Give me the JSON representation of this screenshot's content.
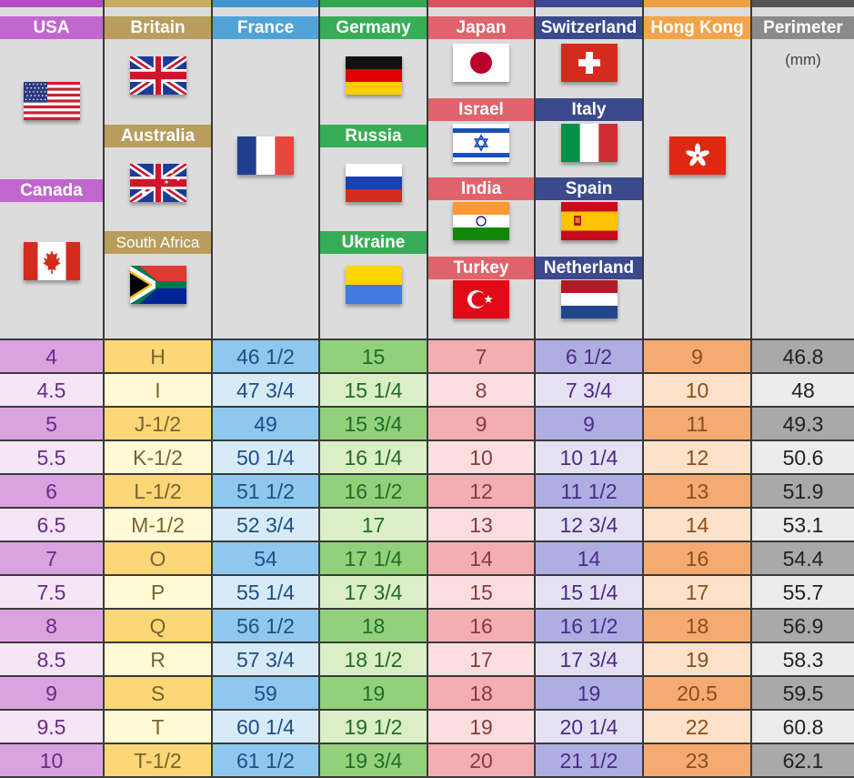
{
  "columns": [
    {
      "key": "usa",
      "header": "USA",
      "badge_color": "#c266cf",
      "top_color": "#b24dc4",
      "dark": "#d9a3e0",
      "light": "#f4e6f4",
      "text": "#6a2a88",
      "groups": [
        {
          "label": "",
          "flag": "us-flag-icon"
        },
        {
          "label": "Canada",
          "flag": "ca-flag-icon"
        }
      ]
    },
    {
      "key": "britain",
      "header": "Britain",
      "badge_color": "#b89d5c",
      "top_color": "#c8ad62",
      "dark": "#fcd777",
      "light": "#fefbd6",
      "text": "#7a6430",
      "groups": [
        {
          "label": "",
          "flag": "gb-flag-icon"
        },
        {
          "label": "Australia",
          "flag": "au-flag-icon"
        },
        {
          "label": "South Africa",
          "flag": "za-flag-icon"
        }
      ]
    },
    {
      "key": "france",
      "header": "France",
      "badge_color": "#4fa3d6",
      "top_color": "#3f96d2",
      "dark": "#8fc8ee",
      "light": "#d6ebf7",
      "text": "#1f4f86",
      "groups": [
        {
          "label": "",
          "flag": "fr-flag-icon"
        }
      ]
    },
    {
      "key": "germany",
      "header": "Germany",
      "badge_color": "#38ad57",
      "top_color": "#2fa64f",
      "dark": "#92d17a",
      "light": "#daefc6",
      "text": "#226b2a",
      "groups": [
        {
          "label": "",
          "flag": "de-flag-icon"
        },
        {
          "label": "Russia",
          "flag": "ru-flag-icon"
        },
        {
          "label": "Ukraine",
          "flag": "ua-flag-icon"
        }
      ]
    },
    {
      "key": "japan",
      "header": "Japan",
      "badge_color": "#e0636b",
      "top_color": "#d9505a",
      "dark": "#f3aeb2",
      "light": "#fbdfe0",
      "text": "#8a3a3e",
      "groups": [
        {
          "label": "",
          "flag": "jp-flag-icon"
        },
        {
          "label": "Israel",
          "flag": "il-flag-icon"
        },
        {
          "label": "India",
          "flag": "in-flag-icon"
        },
        {
          "label": "Turkey",
          "flag": "tr-flag-icon"
        }
      ]
    },
    {
      "key": "switzerland",
      "header": "Switzerland",
      "badge_color": "#3b4a8c",
      "top_color": "#3a4791",
      "dark": "#aeaee3",
      "light": "#e4e1f3",
      "text": "#4d2a88",
      "groups": [
        {
          "label": "",
          "flag": "ch-flag-icon"
        },
        {
          "label": "Italy",
          "flag": "it-flag-icon"
        },
        {
          "label": "Spain",
          "flag": "es-flag-icon"
        },
        {
          "label": "Netherland",
          "flag": "nl-flag-icon"
        }
      ]
    },
    {
      "key": "hongkong",
      "header": "Hong Kong",
      "badge_color": "#f3a449",
      "top_color": "#f0a040",
      "dark": "#f5aa72",
      "light": "#fde2c9",
      "text": "#8a4e1c",
      "groups": [
        {
          "label": "",
          "flag": "hk-flag-icon"
        }
      ]
    },
    {
      "key": "perimeter",
      "header": "Perimeter",
      "unit": "(mm)",
      "badge_color": "#8a8a8a",
      "top_color": "#555555",
      "dark": "#a9a9a9",
      "light": "#ececec",
      "text": "#222222",
      "groups": []
    }
  ],
  "rows": [
    [
      "4",
      "H",
      "46 1/2",
      "15",
      "7",
      "6 1/2",
      "9",
      "46.8"
    ],
    [
      "4.5",
      "I",
      "47 3/4",
      "15 1/4",
      "8",
      "7 3/4",
      "10",
      "48"
    ],
    [
      "5",
      "J-1/2",
      "49",
      "15 3/4",
      "9",
      "9",
      "11",
      "49.3"
    ],
    [
      "5.5",
      "K-1/2",
      "50 1/4",
      "16 1/4",
      "10",
      "10 1/4",
      "12",
      "50.6"
    ],
    [
      "6",
      "L-1/2",
      "51 1/2",
      "16 1/2",
      "12",
      "11 1/2",
      "13",
      "51.9"
    ],
    [
      "6.5",
      "M-1/2",
      "52 3/4",
      "17",
      "13",
      "12 3/4",
      "14",
      "53.1"
    ],
    [
      "7",
      "O",
      "54",
      "17 1/4",
      "14",
      "14",
      "16",
      "54.4"
    ],
    [
      "7.5",
      "P",
      "55 1/4",
      "17 3/4",
      "15",
      "15 1/4",
      "17",
      "55.7"
    ],
    [
      "8",
      "Q",
      "56 1/2",
      "18",
      "16",
      "16 1/2",
      "18",
      "56.9"
    ],
    [
      "8.5",
      "R",
      "57 3/4",
      "18 1/2",
      "17",
      "17 3/4",
      "19",
      "58.3"
    ],
    [
      "9",
      "S",
      "59",
      "19",
      "18",
      "19",
      "20.5",
      "59.5"
    ],
    [
      "9.5",
      "T",
      "60 1/4",
      "19 1/2",
      "19",
      "20 1/4",
      "22",
      "60.8"
    ],
    [
      "10",
      "T-1/2",
      "61 1/2",
      "19 3/4",
      "20",
      "21 1/2",
      "23",
      "62.1"
    ]
  ]
}
